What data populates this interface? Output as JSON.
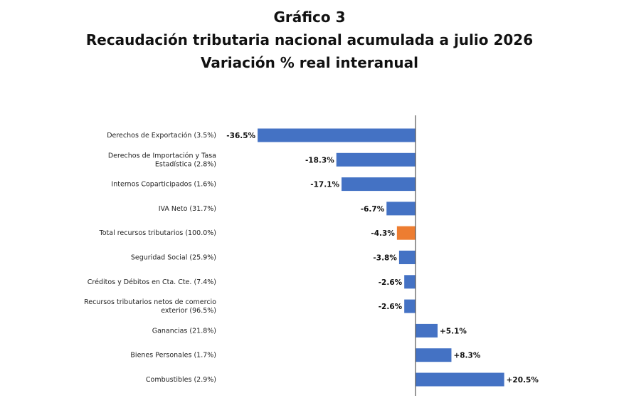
{
  "header": {
    "title": "Gráfico 3",
    "subtitle": "Recaudación tributaria nacional acumulada a julio 2026",
    "subtitle2": "Variación % real interanual"
  },
  "chart_data": {
    "type": "bar",
    "orientation": "horizontal",
    "title": "Gráfico 3",
    "subtitle": "Recaudación tributaria nacional acumulada a julio 2026 — Variación % real interanual",
    "categories": [
      [
        "Derechos de Exportación (3.5%)"
      ],
      [
        "Derechos de Importación y Tasa",
        "Estadística (2.8%)"
      ],
      [
        "Internos Coparticipados (1.6%)"
      ],
      [
        "IVA Neto (31.7%)"
      ],
      [
        "Total recursos tributarios (100.0%)"
      ],
      [
        "Seguridad Social (25.9%)"
      ],
      [
        "Créditos y Débitos en Cta. Cte. (7.4%)"
      ],
      [
        "Recursos tributarios netos de comercio",
        "exterior (96.5%)"
      ],
      [
        "Ganancias (21.8%)"
      ],
      [
        "Bienes Personales (1.7%)"
      ],
      [
        "Combustibles (2.9%)"
      ]
    ],
    "values": [
      -36.5,
      -18.3,
      -17.1,
      -6.7,
      -4.3,
      -3.8,
      -2.6,
      -2.6,
      5.1,
      8.3,
      20.5
    ],
    "value_labels": [
      "-36.5%",
      "-18.3%",
      "-17.1%",
      "-6.7%",
      "-4.3%",
      "-3.8%",
      "-2.6%",
      "-2.6%",
      "+5.1%",
      "+8.3%",
      "+20.5%"
    ],
    "highlight_index": 4,
    "xlim": [
      -37.5,
      21.5
    ],
    "grid": false,
    "colors": {
      "bar": "#4472C4",
      "highlight": "#ED7D31",
      "axis": "#555555"
    }
  }
}
